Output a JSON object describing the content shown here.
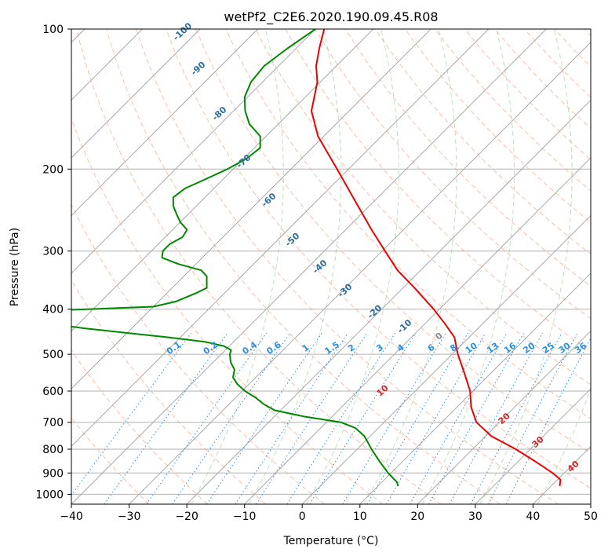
{
  "chart_data": {
    "type": "line",
    "title": "wetPf2_C2E6.2020.190.09.45.R08",
    "xlabel": "Temperature (°C)",
    "ylabel": "Pressure (hPa)",
    "xlim": [
      -40,
      50
    ],
    "ylim": [
      1050,
      100
    ],
    "y_scale": "log",
    "x_ticks": [
      -40,
      -30,
      -20,
      -10,
      0,
      10,
      20,
      30,
      40,
      50
    ],
    "y_ticks": [
      100,
      200,
      300,
      400,
      500,
      600,
      700,
      800,
      900,
      1000
    ],
    "grid": true,
    "isotherm_labels": [
      "-100",
      "-90",
      "-80",
      "-70",
      "-60",
      "-50",
      "-40",
      "-30",
      "-20",
      "-10",
      "0",
      "10",
      "20",
      "30",
      "40"
    ],
    "mixing_ratio_labels": [
      "0.1",
      "0.2",
      "0.4",
      "0.6",
      "1",
      "1.5",
      "2",
      "3",
      "4",
      "6",
      "8",
      "10",
      "13",
      "16",
      "20",
      "25",
      "30",
      "36"
    ],
    "series": [
      {
        "color": "#ee0000",
        "points": [
          [
            960,
            41.5
          ],
          [
            930,
            40.5
          ],
          [
            900,
            38.0
          ],
          [
            850,
            33.0
          ],
          [
            800,
            27.5
          ],
          [
            750,
            21.0
          ],
          [
            700,
            16.0
          ],
          [
            650,
            12.5
          ],
          [
            600,
            9.5
          ],
          [
            550,
            5.5
          ],
          [
            500,
            1.0
          ],
          [
            460,
            -2.5
          ],
          [
            430,
            -6.5
          ],
          [
            400,
            -11.0
          ],
          [
            360,
            -18.0
          ],
          [
            330,
            -24.0
          ],
          [
            300,
            -29.5
          ],
          [
            270,
            -35.5
          ],
          [
            240,
            -42.0
          ],
          [
            200,
            -52.0
          ],
          [
            170,
            -61.0
          ],
          [
            150,
            -66.5
          ],
          [
            130,
            -70.5
          ],
          [
            120,
            -73.5
          ],
          [
            110,
            -76.0
          ],
          [
            100,
            -78.5
          ]
        ]
      },
      {
        "color": "#008800",
        "points": [
          [
            960,
            13.5
          ],
          [
            940,
            12.5
          ],
          [
            920,
            11.0
          ],
          [
            900,
            9.5
          ],
          [
            850,
            6.0
          ],
          [
            800,
            2.5
          ],
          [
            750,
            -1.0
          ],
          [
            720,
            -4.0
          ],
          [
            700,
            -7.5
          ],
          [
            680,
            -15.0
          ],
          [
            660,
            -21.0
          ],
          [
            640,
            -24.0
          ],
          [
            620,
            -26.5
          ],
          [
            600,
            -29.5
          ],
          [
            580,
            -32.0
          ],
          [
            560,
            -34.0
          ],
          [
            540,
            -35.0
          ],
          [
            520,
            -37.0
          ],
          [
            500,
            -38.5
          ],
          [
            490,
            -39.0
          ],
          [
            480,
            -41.0
          ],
          [
            470,
            -45.0
          ],
          [
            460,
            -52.0
          ],
          [
            450,
            -60.0
          ],
          [
            440,
            -68.0
          ],
          [
            430,
            -75.0
          ],
          [
            420,
            -82.0
          ],
          [
            415,
            -88.0
          ],
          [
            412,
            -94.0
          ],
          [
            410,
            -100.0
          ],
          [
            405,
            -82.0
          ],
          [
            395,
            -60.0
          ],
          [
            385,
            -57.0
          ],
          [
            370,
            -55.0
          ],
          [
            360,
            -54.0
          ],
          [
            350,
            -55.0
          ],
          [
            340,
            -56.0
          ],
          [
            330,
            -58.0
          ],
          [
            320,
            -63.0
          ],
          [
            310,
            -67.0
          ],
          [
            300,
            -68.0
          ],
          [
            290,
            -68.0
          ],
          [
            280,
            -67.0
          ],
          [
            270,
            -67.5
          ],
          [
            260,
            -70.0
          ],
          [
            250,
            -72.0
          ],
          [
            240,
            -74.0
          ],
          [
            230,
            -75.5
          ],
          [
            220,
            -75.0
          ],
          [
            210,
            -73.0
          ],
          [
            200,
            -71.0
          ],
          [
            190,
            -69.5
          ],
          [
            180,
            -69.0
          ],
          [
            170,
            -71.0
          ],
          [
            160,
            -75.0
          ],
          [
            150,
            -78.0
          ],
          [
            140,
            -80.5
          ],
          [
            130,
            -82.0
          ],
          [
            120,
            -82.5
          ],
          [
            110,
            -81.5
          ],
          [
            100,
            -80.0
          ]
        ]
      }
    ]
  }
}
